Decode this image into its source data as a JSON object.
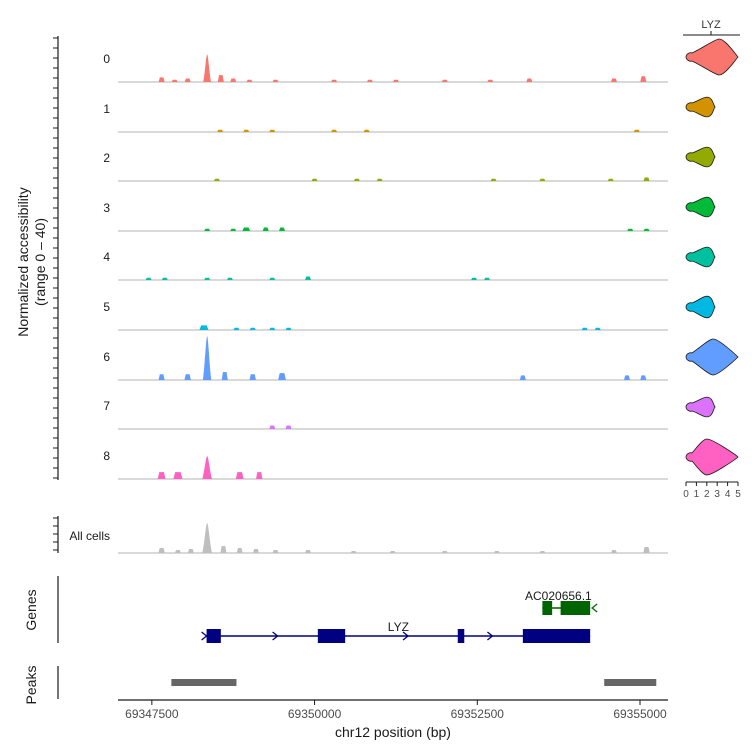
{
  "chart_data": [
    {
      "type": "area",
      "panel": "coverage",
      "y_axis_title": "Normalized accessibility\n(range 0 – 40)",
      "y_range": [
        0,
        40
      ],
      "groups": [
        {
          "name": "0",
          "color": "#F8766D",
          "peaks": [
            {
              "x": 69347650,
              "w": 80,
              "v": 4
            },
            {
              "x": 69347850,
              "w": 60,
              "v": 2
            },
            {
              "x": 69348050,
              "w": 70,
              "v": 3
            },
            {
              "x": 69348350,
              "w": 120,
              "v": 24
            },
            {
              "x": 69348560,
              "w": 70,
              "v": 6
            },
            {
              "x": 69348750,
              "w": 60,
              "v": 3
            },
            {
              "x": 69349000,
              "w": 60,
              "v": 2
            },
            {
              "x": 69349400,
              "w": 60,
              "v": 2
            },
            {
              "x": 69350300,
              "w": 60,
              "v": 2
            },
            {
              "x": 69350850,
              "w": 60,
              "v": 2
            },
            {
              "x": 69351250,
              "w": 60,
              "v": 2
            },
            {
              "x": 69352000,
              "w": 60,
              "v": 2
            },
            {
              "x": 69352700,
              "w": 60,
              "v": 2
            },
            {
              "x": 69353300,
              "w": 60,
              "v": 3
            },
            {
              "x": 69354600,
              "w": 80,
              "v": 3
            },
            {
              "x": 69355050,
              "w": 80,
              "v": 5
            }
          ]
        },
        {
          "name": "1",
          "color": "#D39200",
          "peaks": [
            {
              "x": 69348550,
              "w": 60,
              "v": 2
            },
            {
              "x": 69348950,
              "w": 60,
              "v": 2
            },
            {
              "x": 69349350,
              "w": 60,
              "v": 2
            },
            {
              "x": 69350300,
              "w": 60,
              "v": 2
            },
            {
              "x": 69350800,
              "w": 60,
              "v": 2
            },
            {
              "x": 69354950,
              "w": 60,
              "v": 2
            }
          ]
        },
        {
          "name": "2",
          "color": "#93AA00",
          "peaks": [
            {
              "x": 69348500,
              "w": 60,
              "v": 2
            },
            {
              "x": 69350000,
              "w": 60,
              "v": 2
            },
            {
              "x": 69350650,
              "w": 60,
              "v": 2
            },
            {
              "x": 69351000,
              "w": 60,
              "v": 2
            },
            {
              "x": 69352750,
              "w": 60,
              "v": 2
            },
            {
              "x": 69353500,
              "w": 60,
              "v": 2
            },
            {
              "x": 69354550,
              "w": 60,
              "v": 2
            },
            {
              "x": 69355100,
              "w": 80,
              "v": 3
            }
          ]
        },
        {
          "name": "3",
          "color": "#00BA38",
          "peaks": [
            {
              "x": 69348350,
              "w": 70,
              "v": 2
            },
            {
              "x": 69348750,
              "w": 70,
              "v": 2
            },
            {
              "x": 69348950,
              "w": 120,
              "v": 3
            },
            {
              "x": 69349250,
              "w": 90,
              "v": 3
            },
            {
              "x": 69349500,
              "w": 90,
              "v": 3
            },
            {
              "x": 69354850,
              "w": 60,
              "v": 2
            },
            {
              "x": 69355100,
              "w": 60,
              "v": 2
            }
          ]
        },
        {
          "name": "4",
          "color": "#00C19F",
          "peaks": [
            {
              "x": 69347450,
              "w": 60,
              "v": 2
            },
            {
              "x": 69347700,
              "w": 60,
              "v": 2
            },
            {
              "x": 69348350,
              "w": 60,
              "v": 2
            },
            {
              "x": 69348700,
              "w": 60,
              "v": 2
            },
            {
              "x": 69349350,
              "w": 60,
              "v": 2
            },
            {
              "x": 69349900,
              "w": 80,
              "v": 3
            },
            {
              "x": 69352450,
              "w": 60,
              "v": 2
            },
            {
              "x": 69352650,
              "w": 60,
              "v": 2
            }
          ]
        },
        {
          "name": "5",
          "color": "#00B9E3",
          "peaks": [
            {
              "x": 69348300,
              "w": 140,
              "v": 4
            },
            {
              "x": 69348800,
              "w": 60,
              "v": 2
            },
            {
              "x": 69349050,
              "w": 60,
              "v": 2
            },
            {
              "x": 69349350,
              "w": 60,
              "v": 2
            },
            {
              "x": 69349600,
              "w": 60,
              "v": 2
            },
            {
              "x": 69354150,
              "w": 60,
              "v": 2
            },
            {
              "x": 69354350,
              "w": 60,
              "v": 2
            }
          ]
        },
        {
          "name": "6",
          "color": "#619CFF",
          "peaks": [
            {
              "x": 69347650,
              "w": 80,
              "v": 5
            },
            {
              "x": 69348050,
              "w": 100,
              "v": 5
            },
            {
              "x": 69348350,
              "w": 130,
              "v": 38
            },
            {
              "x": 69348620,
              "w": 80,
              "v": 7
            },
            {
              "x": 69349050,
              "w": 100,
              "v": 5
            },
            {
              "x": 69349500,
              "w": 120,
              "v": 6
            },
            {
              "x": 69353200,
              "w": 80,
              "v": 4
            },
            {
              "x": 69354800,
              "w": 60,
              "v": 4
            },
            {
              "x": 69355050,
              "w": 60,
              "v": 4
            }
          ]
        },
        {
          "name": "7",
          "color": "#DB72FB",
          "peaks": [
            {
              "x": 69349350,
              "w": 80,
              "v": 3
            },
            {
              "x": 69349600,
              "w": 80,
              "v": 3
            }
          ]
        },
        {
          "name": "8",
          "color": "#FF61C3",
          "peaks": [
            {
              "x": 69347650,
              "w": 120,
              "v": 6
            },
            {
              "x": 69347900,
              "w": 140,
              "v": 6
            },
            {
              "x": 69348350,
              "w": 150,
              "v": 20
            },
            {
              "x": 69348850,
              "w": 120,
              "v": 6
            },
            {
              "x": 69349150,
              "w": 100,
              "v": 6
            }
          ]
        },
        {
          "name": "All cells",
          "color": "#BFBFBF",
          "peaks": [
            {
              "x": 69347650,
              "w": 100,
              "v": 5
            },
            {
              "x": 69347900,
              "w": 80,
              "v": 3
            },
            {
              "x": 69348100,
              "w": 80,
              "v": 4
            },
            {
              "x": 69348350,
              "w": 150,
              "v": 30
            },
            {
              "x": 69348600,
              "w": 90,
              "v": 7
            },
            {
              "x": 69348850,
              "w": 90,
              "v": 5
            },
            {
              "x": 69349100,
              "w": 90,
              "v": 4
            },
            {
              "x": 69349400,
              "w": 90,
              "v": 3
            },
            {
              "x": 69349900,
              "w": 90,
              "v": 3
            },
            {
              "x": 69350600,
              "w": 90,
              "v": 2
            },
            {
              "x": 69351200,
              "w": 90,
              "v": 2
            },
            {
              "x": 69352000,
              "w": 90,
              "v": 2
            },
            {
              "x": 69352800,
              "w": 90,
              "v": 2
            },
            {
              "x": 69353500,
              "w": 90,
              "v": 2
            },
            {
              "x": 69354600,
              "w": 90,
              "v": 3
            },
            {
              "x": 69355100,
              "w": 100,
              "v": 6
            }
          ]
        }
      ]
    },
    {
      "type": "violin",
      "panel": "expression",
      "title": "LYZ",
      "x_ticks": [
        "0",
        "1",
        "2",
        "3",
        "4",
        "5"
      ],
      "x_range": [
        0,
        5
      ],
      "violins": [
        {
          "group": "0",
          "color": "#F8766D",
          "max": 5.0,
          "width": 1.0,
          "mode": 3.2
        },
        {
          "group": "1",
          "color": "#D39200",
          "max": 2.8,
          "width": 0.55,
          "mode": 2.0
        },
        {
          "group": "2",
          "color": "#93AA00",
          "max": 2.8,
          "width": 0.55,
          "mode": 2.0
        },
        {
          "group": "3",
          "color": "#00BA38",
          "max": 2.8,
          "width": 0.55,
          "mode": 2.0
        },
        {
          "group": "4",
          "color": "#00C19F",
          "max": 2.8,
          "width": 0.55,
          "mode": 2.0
        },
        {
          "group": "5",
          "color": "#00B9E3",
          "max": 2.8,
          "width": 0.6,
          "mode": 2.0
        },
        {
          "group": "6",
          "color": "#619CFF",
          "max": 5.0,
          "width": 1.0,
          "mode": 2.6
        },
        {
          "group": "7",
          "color": "#DB72FB",
          "max": 2.8,
          "width": 0.55,
          "mode": 2.0
        },
        {
          "group": "8",
          "color": "#FF61C3",
          "max": 5.0,
          "width": 1.0,
          "mode": 2.0
        }
      ]
    },
    {
      "type": "gene_track",
      "panel": "genes",
      "y_axis_title": "Genes",
      "genes": [
        {
          "name": "LYZ",
          "strand": "+",
          "color": "#000080",
          "start": 69348341,
          "end": 69354234,
          "exons": [
            [
              69348341,
              69348560
            ],
            [
              69350050,
              69350470
            ],
            [
              69352200,
              69352300
            ],
            [
              69353200,
              69354234
            ]
          ]
        },
        {
          "name": "AC020656.1",
          "strand": "-",
          "color": "#006400",
          "start": 69353500,
          "end": 69354234,
          "exons": [
            [
              69353500,
              69353650
            ],
            [
              69353780,
              69354234
            ]
          ]
        }
      ]
    },
    {
      "type": "peak_track",
      "panel": "peaks",
      "y_axis_title": "Peaks",
      "color": "#666666",
      "peaks": [
        [
          69347800,
          69348800
        ],
        [
          69354450,
          69355250
        ]
      ]
    },
    {
      "type": "axis",
      "xlabel": "chr12 position (bp)",
      "x_range": [
        69346980,
        69355430
      ],
      "x_ticks": [
        {
          "value": 69347500,
          "label": "69347500"
        },
        {
          "value": 69350000,
          "label": "69350000"
        },
        {
          "value": 69352500,
          "label": "69352500"
        },
        {
          "value": 69355000,
          "label": "69355000"
        }
      ]
    }
  ]
}
